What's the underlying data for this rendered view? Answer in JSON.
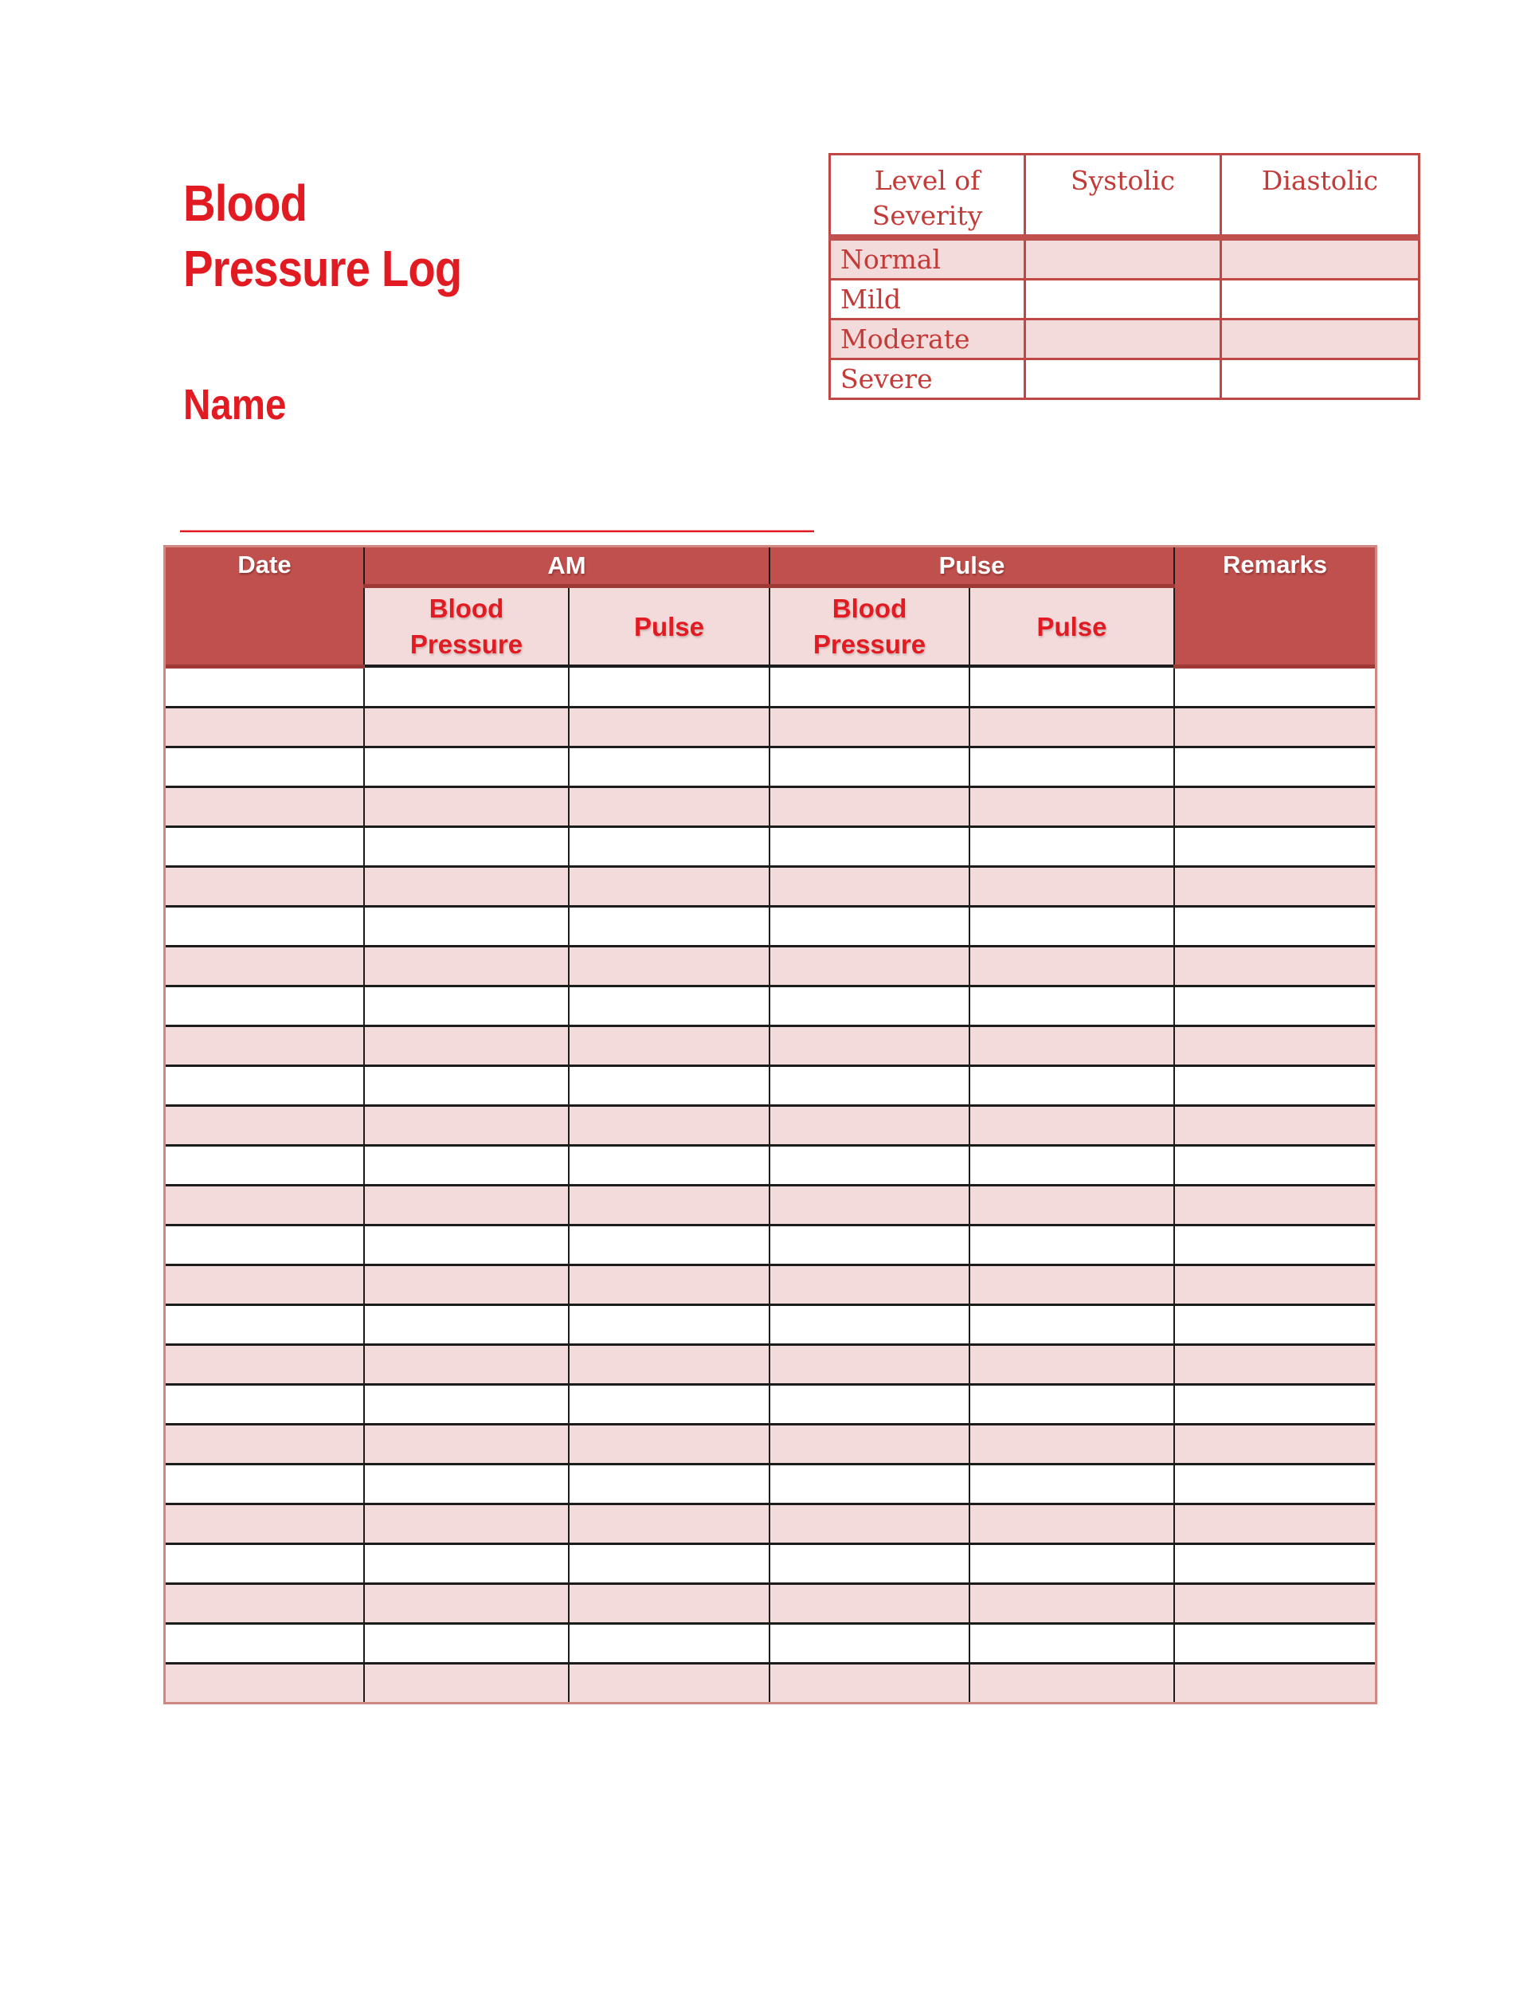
{
  "title": {
    "line1": "Blood",
    "line2": "Pressure Log"
  },
  "name": {
    "label": "Name",
    "underline": "________________________________________"
  },
  "severity_table": {
    "headers": [
      "Level of Severity",
      "Systolic",
      "Diastolic"
    ],
    "row_labels": [
      "Normal",
      "Mild",
      "Moderate",
      "Severe"
    ]
  },
  "log_table": {
    "group_headers": {
      "date": "Date",
      "am": "AM",
      "pm": "Pulse",
      "remarks": "Remarks"
    },
    "sub_headers": [
      "Blood Pressure",
      "Pulse",
      "Blood Pressure",
      "Pulse"
    ],
    "row_count": 26
  },
  "colors": {
    "accent_red": "#E21B23",
    "header_fill": "#C0504D",
    "row_pink": "#F2DBDA",
    "severity_border": "#BF4845",
    "severity_text": "#C33B38",
    "grid_black": "#1C1C1C",
    "outer_frame": "#D08884"
  }
}
